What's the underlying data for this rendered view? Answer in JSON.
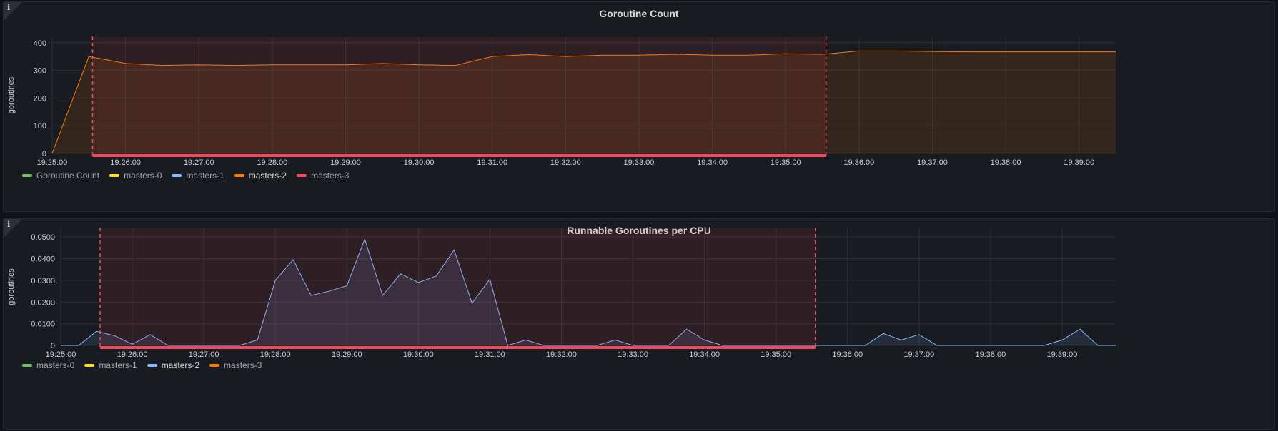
{
  "panels": [
    {
      "title": "Goroutine Count",
      "info_icon": "info-icon",
      "chart_data": {
        "type": "area",
        "ylabel": "goroutines",
        "ylim": [
          0,
          420
        ],
        "y_ticks": [
          "0",
          "100",
          "200",
          "300",
          "400"
        ],
        "y_tick_values": [
          0,
          100,
          200,
          300,
          400
        ],
        "x_ticks": [
          "19:25:00",
          "19:26:00",
          "19:27:00",
          "19:28:00",
          "19:29:00",
          "19:30:00",
          "19:31:00",
          "19:32:00",
          "19:33:00",
          "19:34:00",
          "19:35:00",
          "19:36:00",
          "19:37:00",
          "19:38:00",
          "19:39:00"
        ],
        "xlim": [
          "19:25:00",
          "19:39:30"
        ],
        "grid": true,
        "legend_placement": "bottom-left",
        "region": {
          "from": "19:25:33",
          "to": "19:35:33",
          "color": "#f2495c"
        },
        "series": [
          {
            "name": "masters-2",
            "color": "#ff780a",
            "x": [
              "19:25:00",
              "19:25:30",
              "19:26:00",
              "19:26:30",
              "19:27:00",
              "19:27:30",
              "19:28:00",
              "19:28:30",
              "19:29:00",
              "19:29:30",
              "19:30:00",
              "19:30:30",
              "19:31:00",
              "19:31:30",
              "19:32:00",
              "19:32:30",
              "19:33:00",
              "19:33:30",
              "19:34:00",
              "19:34:30",
              "19:35:00",
              "19:35:30",
              "19:36:00",
              "19:36:30",
              "19:37:00",
              "19:37:30",
              "19:38:00",
              "19:38:30",
              "19:39:00",
              "19:39:30"
            ],
            "y": [
              0,
              350,
              325,
              318,
              320,
              318,
              320,
              320,
              320,
              325,
              320,
              318,
              350,
              357,
              350,
              355,
              355,
              358,
              355,
              355,
              360,
              358,
              370,
              370,
              368,
              367,
              367,
              367,
              367,
              367
            ]
          }
        ]
      },
      "legend": [
        {
          "label": "Goroutine Count",
          "color": "#73bf69",
          "active": false
        },
        {
          "label": "masters-0",
          "color": "#fade2a",
          "active": false
        },
        {
          "label": "masters-1",
          "color": "#8ab8ff",
          "active": false
        },
        {
          "label": "masters-2",
          "color": "#ff780a",
          "active": true
        },
        {
          "label": "masters-3",
          "color": "#f2495c",
          "active": false
        }
      ]
    },
    {
      "title": "Runnable Goroutines per CPU",
      "info_icon": "info-icon",
      "chart_data": {
        "type": "area",
        "ylabel": "goroutines",
        "ylim": [
          0,
          0.054
        ],
        "y_ticks": [
          "0",
          "0.0100",
          "0.0200",
          "0.0300",
          "0.0400",
          "0.0500"
        ],
        "y_tick_values": [
          0,
          0.01,
          0.02,
          0.03,
          0.04,
          0.05
        ],
        "x_ticks": [
          "19:25:00",
          "19:26:00",
          "19:27:00",
          "19:28:00",
          "19:29:00",
          "19:30:00",
          "19:31:00",
          "19:32:00",
          "19:33:00",
          "19:34:00",
          "19:35:00",
          "19:36:00",
          "19:37:00",
          "19:38:00",
          "19:39:00"
        ],
        "xlim": [
          "19:25:00",
          "19:39:45"
        ],
        "grid": true,
        "legend_placement": "bottom-left",
        "region": {
          "from": "19:25:33",
          "to": "19:35:33",
          "color": "#f2495c"
        },
        "series": [
          {
            "name": "masters-2",
            "color": "#8ab8ff",
            "x": [
              "19:25:00",
              "19:25:15",
              "19:25:30",
              "19:25:45",
              "19:26:00",
              "19:26:15",
              "19:26:30",
              "19:26:45",
              "19:27:00",
              "19:27:15",
              "19:27:30",
              "19:27:45",
              "19:28:00",
              "19:28:15",
              "19:28:30",
              "19:28:45",
              "19:29:00",
              "19:29:15",
              "19:29:30",
              "19:29:45",
              "19:30:00",
              "19:30:15",
              "19:30:30",
              "19:30:45",
              "19:31:00",
              "19:31:15",
              "19:31:30",
              "19:31:45",
              "19:32:00",
              "19:32:15",
              "19:32:30",
              "19:32:45",
              "19:33:00",
              "19:33:15",
              "19:33:30",
              "19:33:45",
              "19:34:00",
              "19:34:15",
              "19:34:30",
              "19:34:45",
              "19:35:00",
              "19:35:15",
              "19:35:30",
              "19:35:45",
              "19:36:00",
              "19:36:15",
              "19:36:30",
              "19:36:45",
              "19:37:00",
              "19:37:15",
              "19:37:30",
              "19:37:45",
              "19:38:00",
              "19:38:15",
              "19:38:30",
              "19:38:45",
              "19:39:00",
              "19:39:15",
              "19:39:30",
              "19:39:45"
            ],
            "y": [
              0,
              0,
              0.0065,
              0.0045,
              0.0005,
              0.005,
              0,
              0,
              0,
              0,
              0,
              0.0025,
              0.03,
              0.0395,
              0.023,
              0.025,
              0.0275,
              0.049,
              0.023,
              0.033,
              0.029,
              0.032,
              0.044,
              0.0195,
              0.0305,
              0,
              0.0025,
              0,
              0,
              0,
              0,
              0.0025,
              0,
              0,
              0,
              0.0075,
              0.0025,
              0,
              0,
              0,
              0,
              0,
              0,
              0,
              0,
              0,
              0.0055,
              0.0025,
              0.005,
              0,
              0,
              0,
              0,
              0,
              0,
              0,
              0.0025,
              0.0075,
              0,
              0
            ]
          }
        ]
      },
      "legend": [
        {
          "label": "masters-0",
          "color": "#73bf69",
          "active": false
        },
        {
          "label": "masters-1",
          "color": "#fade2a",
          "active": false
        },
        {
          "label": "masters-2",
          "color": "#8ab8ff",
          "active": true
        },
        {
          "label": "masters-3",
          "color": "#ff780a",
          "active": false
        }
      ]
    }
  ]
}
